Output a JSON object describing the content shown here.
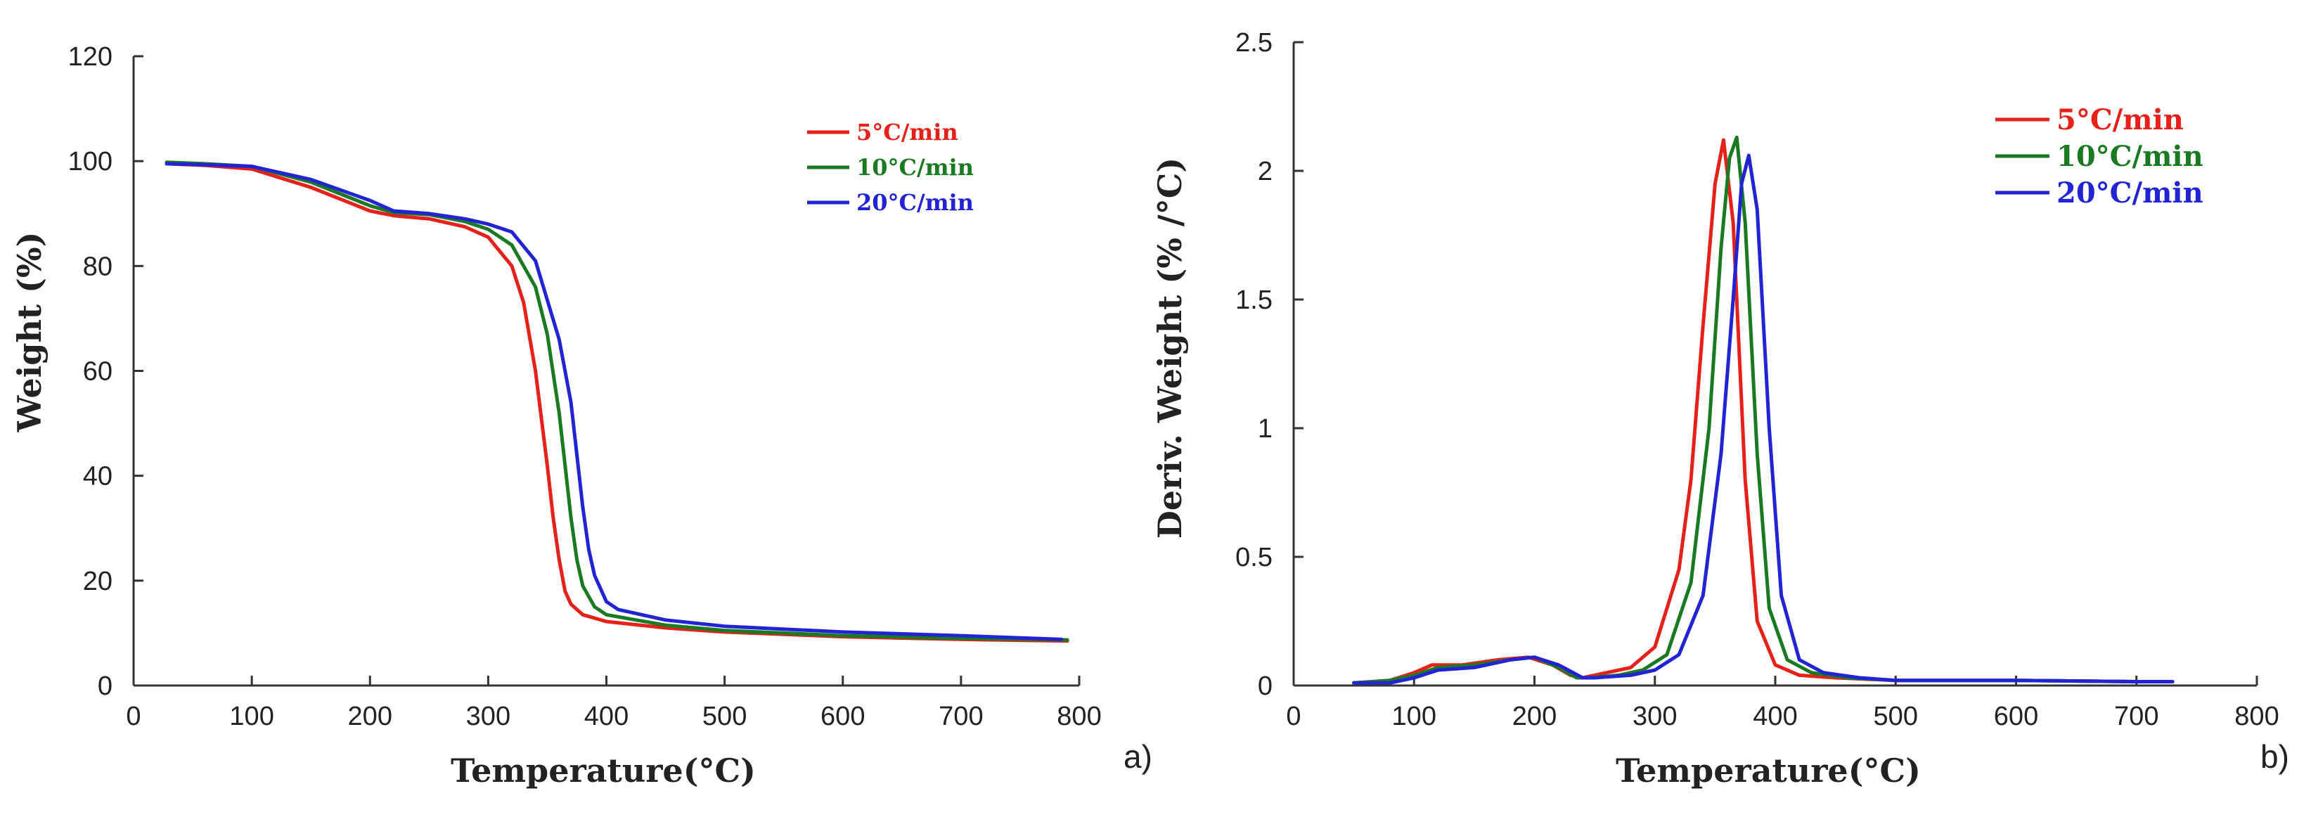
{
  "chart_data": [
    {
      "type": "line",
      "panel_label": "a)",
      "title": "",
      "xlabel": "Temperature(°C)",
      "ylabel": "Weight (%)",
      "xlim": [
        0,
        800
      ],
      "ylim": [
        0,
        120
      ],
      "xticks": [
        0,
        100,
        200,
        300,
        400,
        500,
        600,
        700,
        800
      ],
      "yticks": [
        0,
        20,
        40,
        60,
        80,
        100,
        120
      ],
      "grid": false,
      "legend_position": "top-right",
      "series": [
        {
          "name": "5°C/min",
          "color": "#e8201a",
          "x": [
            28,
            60,
            100,
            150,
            200,
            220,
            250,
            280,
            300,
            320,
            330,
            340,
            350,
            355,
            360,
            365,
            370,
            380,
            400,
            450,
            500,
            600,
            700,
            790
          ],
          "y": [
            99.5,
            99.2,
            98.5,
            95.0,
            90.5,
            89.6,
            89.0,
            87.5,
            85.5,
            80.0,
            73.0,
            60.0,
            42.0,
            32.0,
            24.0,
            18.0,
            15.5,
            13.5,
            12.2,
            11.0,
            10.2,
            9.3,
            8.8,
            8.5
          ]
        },
        {
          "name": "10°C/min",
          "color": "#1a7a22",
          "x": [
            28,
            60,
            100,
            150,
            200,
            220,
            250,
            280,
            300,
            320,
            340,
            350,
            360,
            365,
            370,
            375,
            380,
            390,
            400,
            450,
            500,
            600,
            700,
            790
          ],
          "y": [
            99.8,
            99.5,
            99.0,
            96.0,
            91.5,
            90.2,
            89.8,
            88.5,
            87.0,
            84.0,
            76.0,
            67.0,
            52.0,
            42.0,
            32.0,
            24.0,
            19.0,
            15.0,
            13.5,
            11.5,
            10.5,
            9.5,
            9.0,
            8.7
          ]
        },
        {
          "name": "20°C/min",
          "color": "#2323d6",
          "x": [
            28,
            60,
            100,
            150,
            200,
            220,
            250,
            280,
            300,
            320,
            340,
            360,
            370,
            375,
            380,
            385,
            390,
            400,
            410,
            450,
            500,
            600,
            700,
            785
          ],
          "y": [
            99.5,
            99.3,
            99.0,
            96.5,
            92.5,
            90.5,
            90.0,
            89.0,
            88.0,
            86.5,
            81.0,
            66.0,
            54.0,
            44.0,
            34.0,
            26.0,
            21.0,
            16.0,
            14.5,
            12.5,
            11.3,
            10.2,
            9.5,
            8.8
          ]
        }
      ]
    },
    {
      "type": "line",
      "panel_label": "b)",
      "title": "",
      "xlabel": "Temperature(°C)",
      "ylabel": "Deriv. Weight (% /°C)",
      "xlim": [
        0,
        800
      ],
      "ylim": [
        0,
        2.5
      ],
      "xticks": [
        0,
        100,
        200,
        300,
        400,
        500,
        600,
        700,
        800
      ],
      "yticks": [
        0,
        0.5,
        1,
        1.5,
        2,
        2.5
      ],
      "ytick_labels": [
        "0",
        "0.5",
        "1",
        "1.5",
        "2",
        "2.5"
      ],
      "grid": false,
      "legend_position": "top-right",
      "series": [
        {
          "name": "5°C/min",
          "color": "#e8201a",
          "x": [
            50,
            80,
            100,
            115,
            140,
            170,
            195,
            215,
            230,
            240,
            260,
            280,
            300,
            320,
            330,
            340,
            350,
            357,
            365,
            375,
            385,
            400,
            420,
            450,
            500,
            600,
            700,
            730
          ],
          "y": [
            0.01,
            0.02,
            0.05,
            0.08,
            0.08,
            0.1,
            0.11,
            0.08,
            0.04,
            0.03,
            0.05,
            0.07,
            0.15,
            0.45,
            0.8,
            1.4,
            1.95,
            2.12,
            1.8,
            0.8,
            0.25,
            0.08,
            0.04,
            0.03,
            0.02,
            0.02,
            0.015,
            0.015
          ]
        },
        {
          "name": "10°C/min",
          "color": "#1a7a22",
          "x": [
            50,
            80,
            100,
            120,
            150,
            180,
            200,
            220,
            235,
            245,
            270,
            290,
            310,
            330,
            345,
            355,
            362,
            368,
            375,
            385,
            395,
            410,
            430,
            460,
            500,
            600,
            700,
            730
          ],
          "y": [
            0.01,
            0.02,
            0.04,
            0.07,
            0.08,
            0.1,
            0.11,
            0.07,
            0.03,
            0.03,
            0.04,
            0.06,
            0.12,
            0.4,
            1.0,
            1.7,
            2.05,
            2.13,
            1.8,
            0.9,
            0.3,
            0.1,
            0.05,
            0.03,
            0.02,
            0.02,
            0.015,
            0.015
          ]
        },
        {
          "name": "20°C/min",
          "color": "#2323d6",
          "x": [
            50,
            80,
            100,
            120,
            150,
            180,
            200,
            220,
            240,
            250,
            280,
            300,
            320,
            340,
            355,
            365,
            372,
            378,
            385,
            395,
            405,
            420,
            440,
            470,
            500,
            600,
            700,
            730
          ],
          "y": [
            0.01,
            0.01,
            0.03,
            0.06,
            0.07,
            0.1,
            0.11,
            0.08,
            0.03,
            0.03,
            0.04,
            0.06,
            0.12,
            0.35,
            0.9,
            1.5,
            1.95,
            2.06,
            1.85,
            1.0,
            0.35,
            0.1,
            0.05,
            0.03,
            0.02,
            0.02,
            0.015,
            0.015
          ]
        }
      ]
    }
  ]
}
